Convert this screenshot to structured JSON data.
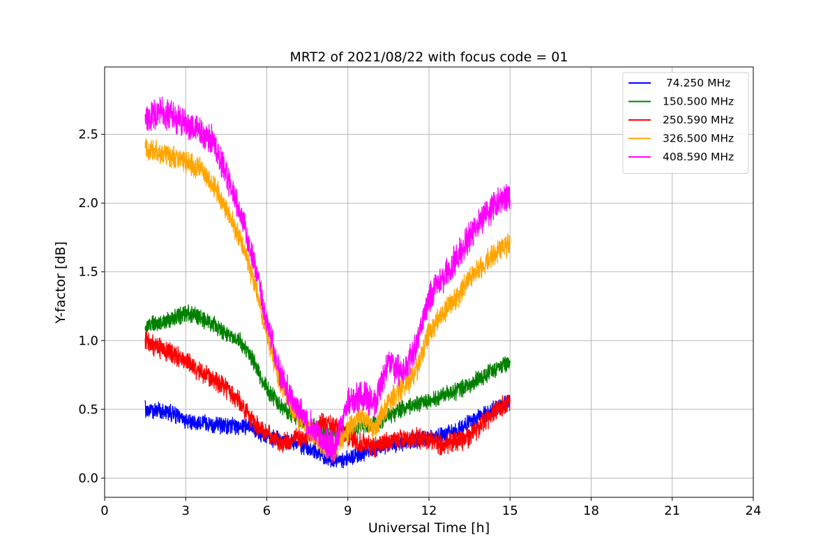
{
  "chart_data": {
    "type": "line",
    "title": "MRT2 of 2021/08/22 with focus code = 01",
    "xlabel": "Universal Time [h]",
    "ylabel": "Y-factor [dB]",
    "xlim": [
      0,
      24
    ],
    "ylim": [
      -0.14,
      2.99
    ],
    "xticks": [
      0,
      3,
      6,
      9,
      12,
      15,
      18,
      21,
      24
    ],
    "yticks": [
      0.0,
      0.5,
      1.0,
      1.5,
      2.0,
      2.5
    ],
    "xtick_labels": [
      "0",
      "3",
      "6",
      "9",
      "12",
      "15",
      "18",
      "21",
      "24"
    ],
    "ytick_labels": [
      "0.0",
      "0.5",
      "1.0",
      "1.5",
      "2.0",
      "2.5"
    ],
    "grid": true,
    "legend_position": "top-right",
    "series": [
      {
        "name": " 74.250 MHz",
        "color": "#0000ff",
        "noise": 0.05,
        "x": [
          1.5,
          2.0,
          2.5,
          3.0,
          3.5,
          4.0,
          4.5,
          5.0,
          5.5,
          6.0,
          6.5,
          7.0,
          7.5,
          8.0,
          8.5,
          9.0,
          9.5,
          10.0,
          10.5,
          11.0,
          11.5,
          12.0,
          12.5,
          13.0,
          13.5,
          14.0,
          14.5,
          15.0
        ],
        "y": [
          0.5,
          0.49,
          0.47,
          0.42,
          0.4,
          0.39,
          0.38,
          0.38,
          0.36,
          0.3,
          0.28,
          0.26,
          0.22,
          0.18,
          0.12,
          0.14,
          0.18,
          0.22,
          0.24,
          0.26,
          0.27,
          0.29,
          0.31,
          0.35,
          0.4,
          0.45,
          0.52,
          0.56
        ]
      },
      {
        "name": "150.500 MHz",
        "color": "#008000",
        "noise": 0.05,
        "x": [
          1.5,
          2.0,
          2.5,
          3.0,
          3.5,
          4.0,
          4.5,
          5.0,
          5.5,
          6.0,
          6.5,
          7.0,
          7.5,
          8.0,
          8.5,
          9.0,
          9.5,
          10.0,
          10.5,
          11.0,
          11.5,
          12.0,
          12.5,
          13.0,
          13.5,
          14.0,
          14.5,
          15.0
        ],
        "y": [
          1.1,
          1.13,
          1.16,
          1.2,
          1.17,
          1.12,
          1.05,
          1.0,
          0.85,
          0.65,
          0.52,
          0.45,
          0.4,
          0.35,
          0.3,
          0.32,
          0.38,
          0.4,
          0.45,
          0.5,
          0.53,
          0.56,
          0.6,
          0.63,
          0.68,
          0.74,
          0.8,
          0.85
        ]
      },
      {
        "name": "250.590 MHz",
        "color": "#ff0000",
        "noise": 0.06,
        "x": [
          1.5,
          2.0,
          2.5,
          3.0,
          3.5,
          4.0,
          4.5,
          5.0,
          5.5,
          6.0,
          6.5,
          7.0,
          7.5,
          8.0,
          8.5,
          9.0,
          9.5,
          10.0,
          10.5,
          11.0,
          11.5,
          12.0,
          12.5,
          13.0,
          13.5,
          14.0,
          14.5,
          15.0
        ],
        "y": [
          1.0,
          0.95,
          0.9,
          0.85,
          0.78,
          0.72,
          0.65,
          0.55,
          0.4,
          0.32,
          0.25,
          0.28,
          0.3,
          0.4,
          0.38,
          0.3,
          0.25,
          0.22,
          0.26,
          0.28,
          0.3,
          0.28,
          0.24,
          0.26,
          0.3,
          0.4,
          0.5,
          0.55
        ]
      },
      {
        "name": "326.500 MHz",
        "color": "#ffa500",
        "noise": 0.07,
        "x": [
          1.5,
          2.0,
          2.5,
          3.0,
          3.5,
          4.0,
          4.5,
          5.0,
          5.5,
          6.0,
          6.5,
          7.0,
          7.5,
          8.0,
          8.5,
          9.0,
          9.5,
          10.0,
          10.5,
          11.0,
          11.5,
          12.0,
          12.5,
          13.0,
          13.5,
          14.0,
          14.5,
          15.0
        ],
        "y": [
          2.4,
          2.36,
          2.34,
          2.3,
          2.25,
          2.15,
          1.95,
          1.75,
          1.45,
          1.05,
          0.7,
          0.5,
          0.35,
          0.25,
          0.2,
          0.35,
          0.45,
          0.35,
          0.55,
          0.65,
          0.75,
          1.05,
          1.2,
          1.3,
          1.45,
          1.55,
          1.65,
          1.7
        ]
      },
      {
        "name": "408.590 MHz",
        "color": "#ff00ff",
        "noise": 0.09,
        "x": [
          1.5,
          2.0,
          2.5,
          3.0,
          3.5,
          4.0,
          4.5,
          5.0,
          5.5,
          6.0,
          6.5,
          7.0,
          7.5,
          8.0,
          8.5,
          9.0,
          9.5,
          10.0,
          10.5,
          11.0,
          11.5,
          12.0,
          12.5,
          13.0,
          13.5,
          14.0,
          14.5,
          15.0
        ],
        "y": [
          2.62,
          2.66,
          2.64,
          2.58,
          2.52,
          2.45,
          2.2,
          1.95,
          1.6,
          1.15,
          0.75,
          0.55,
          0.4,
          0.28,
          0.22,
          0.55,
          0.6,
          0.55,
          0.85,
          0.75,
          0.95,
          1.3,
          1.45,
          1.6,
          1.75,
          1.9,
          2.0,
          2.05
        ]
      }
    ]
  }
}
